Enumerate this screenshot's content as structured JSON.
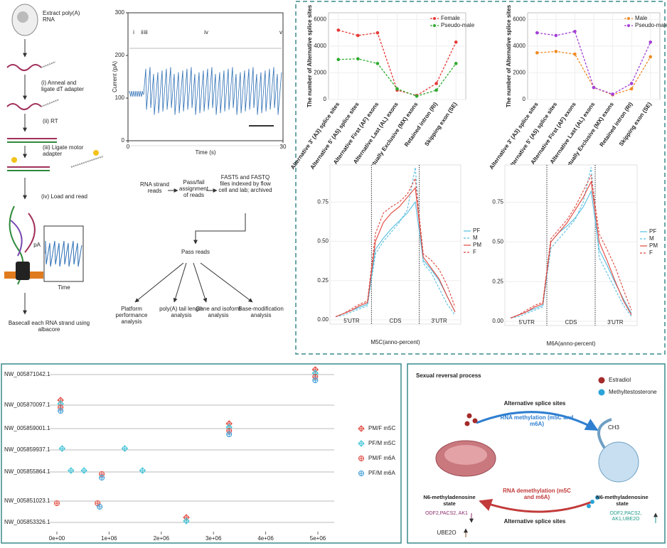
{
  "workflow": {
    "steps": [
      "Extract poly(A) RNA",
      "(i) Anneal and ligate dT adapter",
      "(ii) RT",
      "(iii) Ligate motor adapter",
      "(iv) Load and read",
      "Basecall each RNA strand using albacore"
    ],
    "inset_ylabel": "pA",
    "inset_xlabel": "Time"
  },
  "current_trace": {
    "ylabel": "Current (pA)",
    "xlabel": "Time (s)",
    "ylim": [
      0,
      300
    ],
    "yticks": [
      0,
      100,
      200,
      300
    ],
    "xlim": [
      0,
      30
    ],
    "xticks": [
      0,
      30
    ],
    "markers": [
      "i",
      "ii",
      "iii",
      "iv",
      "v"
    ]
  },
  "pipeline": {
    "nodes": [
      "RNA strand reads",
      "Pass/fail assignment of reads",
      "FAST5 and FASTQ files indexed by flow cell and lab; archived",
      "Pass reads"
    ],
    "outputs": [
      "Platform performance analysis",
      "poly(A) tail length analysis",
      "Gene and isoform analysis",
      "Base-modification analysis"
    ]
  },
  "splice_charts": [
    {
      "type": "line",
      "ylabel": "The number of Alternative splice sites",
      "categories": [
        "Alternative 3' (A3) splice sites",
        "Alternative 5' (A5) splice sites",
        "Alternative First (AF) exons",
        "Alternative Last (AL) exons",
        "Mutually Exclusive (MX) exons",
        "Retained intron (RI)",
        "Skipping exon (SE)"
      ],
      "ylim": [
        0,
        6500
      ],
      "yticks": [
        0,
        2000,
        4000,
        6000
      ],
      "series": [
        {
          "name": "Female",
          "color": "#e53935",
          "values": [
            5200,
            4800,
            5000,
            700,
            300,
            1200,
            4300
          ]
        },
        {
          "name": "Pseudo-male",
          "color": "#2eaa2e",
          "values": [
            3000,
            3050,
            2700,
            800,
            250,
            700,
            2700
          ]
        }
      ]
    },
    {
      "type": "line",
      "ylabel": "The number of Alternative splice sites",
      "categories": [
        "Alternative 3' (A3) splice sites",
        "Alternative 5' (A5) splice sites",
        "Alternative First (AF) exons",
        "Alternative Last (AL) exons",
        "Mutually Exclusive (MX) exons",
        "Retained intron (RI)",
        "Skipping exon (SE)"
      ],
      "ylim": [
        0,
        6500
      ],
      "yticks": [
        0,
        2000,
        4000,
        6000
      ],
      "series": [
        {
          "name": "Male",
          "color": "#f08a24",
          "values": [
            3500,
            3600,
            3400,
            900,
            350,
            800,
            3200
          ]
        },
        {
          "name": "Pseudo-male",
          "color": "#a23fd6",
          "values": [
            5000,
            4800,
            5100,
            900,
            400,
            1200,
            4300
          ]
        }
      ]
    }
  ],
  "metagene_charts": [
    {
      "type": "line",
      "title": "M5C(anno-percent)",
      "regions": [
        "5'UTR",
        "CDS",
        "3'UTR"
      ],
      "ylim": [
        0,
        0.95
      ],
      "yticks": [
        {
          "value": 0,
          "label": "0.00"
        },
        {
          "value": 0.25,
          "label": "0.25"
        },
        {
          "value": 0.5,
          "label": "0.50"
        },
        {
          "value": 0.75,
          "label": "0.75"
        }
      ],
      "series": [
        {
          "name": "PF",
          "color": "#55bde0",
          "values": [
            0.02,
            0.04,
            0.06,
            0.08,
            0.1,
            0.45,
            0.52,
            0.58,
            0.63,
            0.68,
            0.75,
            0.38,
            0.32,
            0.25,
            0.15,
            0.05
          ]
        },
        {
          "name": "M",
          "color": "#55bde0",
          "values": [
            0.02,
            0.03,
            0.05,
            0.07,
            0.09,
            0.42,
            0.5,
            0.56,
            0.62,
            0.7,
            0.97,
            0.36,
            0.3,
            0.2,
            0.1,
            0.03
          ]
        },
        {
          "name": "PM",
          "color": "#e0463c",
          "values": [
            0.02,
            0.04,
            0.06,
            0.09,
            0.11,
            0.5,
            0.62,
            0.68,
            0.72,
            0.78,
            0.84,
            0.4,
            0.33,
            0.26,
            0.15,
            0.05
          ]
        },
        {
          "name": "F",
          "color": "#e0463c",
          "values": [
            0.02,
            0.04,
            0.07,
            0.1,
            0.12,
            0.55,
            0.68,
            0.72,
            0.75,
            0.8,
            0.9,
            0.42,
            0.38,
            0.32,
            0.22,
            0.08
          ]
        }
      ]
    },
    {
      "type": "line",
      "title": "M6A(anno-percent)",
      "regions": [
        "5'UTR",
        "CDS",
        "3'UTR"
      ],
      "ylim": [
        0,
        0.95
      ],
      "yticks": [
        {
          "value": 0,
          "label": "0.00"
        },
        {
          "value": 0.25,
          "label": "0.25"
        },
        {
          "value": 0.5,
          "label": "0.50"
        },
        {
          "value": 0.75,
          "label": "0.75"
        }
      ],
      "series": [
        {
          "name": "PF",
          "color": "#55bde0",
          "values": [
            0.02,
            0.04,
            0.06,
            0.08,
            0.1,
            0.5,
            0.56,
            0.6,
            0.65,
            0.72,
            0.82,
            0.45,
            0.35,
            0.24,
            0.14,
            0.05
          ]
        },
        {
          "name": "M",
          "color": "#55bde0",
          "values": [
            0.02,
            0.03,
            0.05,
            0.07,
            0.09,
            0.46,
            0.52,
            0.58,
            0.64,
            0.75,
            0.97,
            0.4,
            0.3,
            0.2,
            0.1,
            0.03
          ]
        },
        {
          "name": "PM",
          "color": "#e0463c",
          "values": [
            0.02,
            0.04,
            0.06,
            0.09,
            0.11,
            0.5,
            0.56,
            0.62,
            0.7,
            0.78,
            0.88,
            0.5,
            0.38,
            0.25,
            0.13,
            0.04
          ]
        },
        {
          "name": "F",
          "color": "#e0463c",
          "values": [
            0.02,
            0.04,
            0.07,
            0.1,
            0.12,
            0.52,
            0.58,
            0.64,
            0.72,
            0.82,
            0.92,
            0.55,
            0.45,
            0.34,
            0.2,
            0.07
          ]
        }
      ]
    }
  ],
  "dot_plot": {
    "type": "scatter",
    "categories": [
      "NW_005871042.1",
      "NW_005870097.1",
      "NW_005859001.1",
      "NW_005859937.1",
      "NW_005855864.1",
      "NW_005851023.1",
      "NW_005853326.1"
    ],
    "xlim": [
      -100000,
      5100000
    ],
    "xticks": [
      {
        "value": 0,
        "label": "0e+00"
      },
      {
        "value": 1000000,
        "label": "1e+06"
      },
      {
        "value": 2000000,
        "label": "2e+06"
      },
      {
        "value": 3000000,
        "label": "3e+06"
      },
      {
        "value": 4000000,
        "label": "4e+06"
      },
      {
        "value": 5000000,
        "label": "5e+06"
      }
    ],
    "series": [
      {
        "name": "PM/F m5C",
        "color": "#e0463c",
        "marker": "diamond",
        "x": [
          4950000,
          70000,
          3300000,
          2480000
        ],
        "y": [
          "NW_005871042.1",
          "NW_005870097.1",
          "NW_005859001.1",
          "NW_005853326.1"
        ]
      },
      {
        "name": "PF/M m5C",
        "color": "#3cc4d8",
        "marker": "diamond",
        "x": [
          4950000,
          70000,
          3300000,
          100000,
          1300000,
          270000,
          520000,
          1640000,
          2480000
        ],
        "y": [
          "NW_005871042.1",
          "NW_005870097.1",
          "NW_005859001.1",
          "NW_005859937.1",
          "NW_005859937.1",
          "NW_005855864.1",
          "NW_005855864.1",
          "NW_005855864.1",
          "NW_005853326.1"
        ]
      },
      {
        "name": "PM/F m6A",
        "color": "#e0463c",
        "marker": "circle",
        "x": [
          4950000,
          70000,
          3300000,
          860000,
          0,
          780000
        ],
        "y": [
          "NW_005871042.1",
          "NW_005870097.1",
          "NW_005859001.1",
          "NW_005855864.1",
          "NW_005851023.1",
          "NW_005851023.1"
        ]
      },
      {
        "name": "PF/M m6A",
        "color": "#3b9bd6",
        "marker": "circle",
        "x": [
          4950000,
          70000,
          3300000,
          860000,
          820000
        ],
        "y": [
          "NW_005871042.1",
          "NW_005870097.1",
          "NW_005859001.1",
          "NW_005855864.1",
          "NW_005851023.1"
        ]
      }
    ]
  },
  "reversal": {
    "title": "Sexual reversal process",
    "legend": [
      "Estradiol",
      "Methyltestosterone"
    ],
    "top_splice": "Alternative splice sites",
    "methylation": "RNA methylation (m5C and m6A)",
    "ch3": "CH3",
    "demethylation": "RNA demethylation (m5C and m6A)",
    "bottom_splice": "Alternative  splice sites",
    "left_state": "N6-methyladenosine state",
    "right_state": "N6-methyladenosine state",
    "left_genes": [
      "ODF2,PACS2, AK1",
      "UBE2O"
    ],
    "right_genes": "ODF2,PACS2, AK1,UBE2O"
  }
}
